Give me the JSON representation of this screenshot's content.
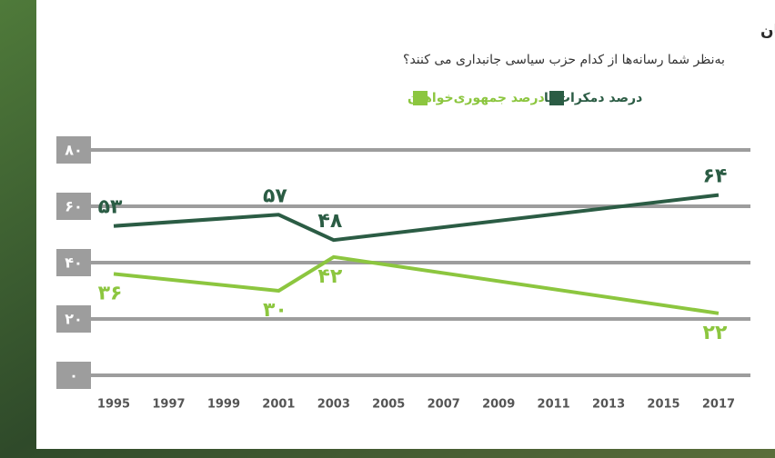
{
  "chart_data": {
    "type": "line",
    "title": "بیشتر آمریکایی‌ها اعتقاد دارند رسانه‌ها بیشتر جانب دمکرات‌ها را می گیرند تا جمهوری خواهان",
    "subtitle": "به‌نظر شما رسانه‌ها از کدام حزب سیاسی جانبداری می کنند؟",
    "x": [
      1995,
      2001,
      2003,
      2017
    ],
    "series": [
      {
        "name": "درصد دمکرات‌ها",
        "color": "#2b5c44",
        "values": [
          53,
          57,
          48,
          64
        ],
        "value_labels": [
          "۵۳",
          "۵۷",
          "۴۸",
          "۶۴"
        ]
      },
      {
        "name": "درصد جمهوری‌خواهان",
        "color": "#8cc63f",
        "values": [
          36,
          30,
          42,
          22
        ],
        "value_labels": [
          "۳۶",
          "۳۰",
          "۴۲",
          "۲۲"
        ]
      }
    ],
    "xlim": [
      1994,
      2018
    ],
    "xticks": [
      1995,
      1997,
      1999,
      2001,
      2003,
      2005,
      2007,
      2009,
      2011,
      2013,
      2015,
      2017
    ],
    "ylim": [
      0,
      80
    ],
    "yticks": [
      {
        "value": 0,
        "label": "۰"
      },
      {
        "value": 20,
        "label": "۲۰"
      },
      {
        "value": 40,
        "label": "۴۰"
      },
      {
        "value": 60,
        "label": "۶۰"
      },
      {
        "value": 80,
        "label": "۸۰"
      }
    ],
    "grid": true
  }
}
